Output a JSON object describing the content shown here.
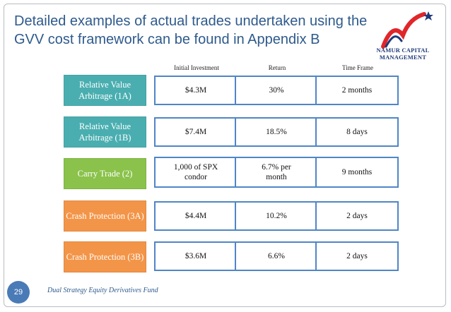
{
  "slide": {
    "title": "Detailed examples of actual trades undertaken using the GVV cost framework can be found in Appendix B",
    "logo_text_line1": "NAMUR CAPITAL",
    "logo_text_line2": "MANAGEMENT",
    "columns": [
      "Initial Investment",
      "Return",
      "Time Frame"
    ],
    "rows": [
      {
        "label": "Relative Value Arbitrage (1A)",
        "category_color": "#4aaeb0",
        "investment": "$4.3M",
        "return": "30%",
        "time_frame": "2 months"
      },
      {
        "label": "Relative Value Arbitrage (1B)",
        "category_color": "#4aaeb0",
        "investment": "$7.4M",
        "return": "18.5%",
        "time_frame": "8 days"
      },
      {
        "label": "Carry Trade (2)",
        "category_color": "#8ac24b",
        "investment": "1,000 of SPX condor",
        "return": "6.7% per month",
        "time_frame": "9 months"
      },
      {
        "label": "Crash Protection (3A)",
        "category_color": "#f39548",
        "investment": "$4.4M",
        "return": "10.2%",
        "time_frame": "2 days"
      },
      {
        "label": "Crash Protection (3B)",
        "category_color": "#f39548",
        "investment": "$3.6M",
        "return": "6.6%",
        "time_frame": "2 days"
      }
    ],
    "page_number": "29",
    "footer": "Dual Strategy Equity Derivatives Fund",
    "colors": {
      "title": "#2e5a8c",
      "cell_border": "#4f86c6",
      "logo_red": "#e0262b",
      "logo_blue": "#1f3a7a"
    }
  }
}
